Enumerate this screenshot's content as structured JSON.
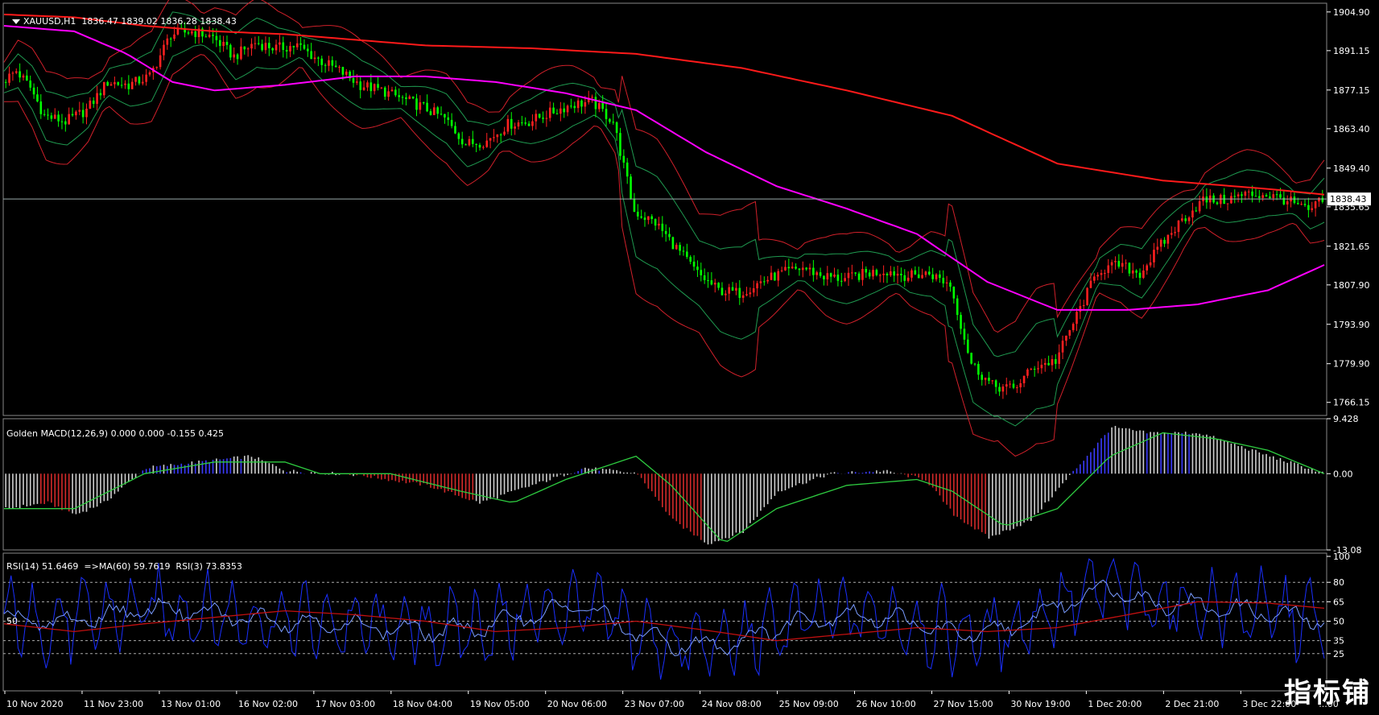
{
  "header": {
    "symbol": "XAUUSD,H1",
    "ohlc": "1836.47 1839.02 1836.28 1838.43"
  },
  "indicators": {
    "macd_label": "Golden MACD(12,26,9) 0.000 0.000 -0.155 0.425",
    "rsi_label": "RSI(14) 51.6469  =>MA(60) 59.7619  RSI(3) 73.8353",
    "rsi_mid_label": "50"
  },
  "current_price": "1838.43",
  "watermark": "指标铺",
  "colors": {
    "background": "#000000",
    "bull": "#ff2020",
    "bear": "#00ff00",
    "ma_slow": "#ff1a1a",
    "ma_mid": "#ff00ff",
    "bb_outer": "#d0202a",
    "bb_inner": "#1f9a50",
    "macd_signal": "#2ecc40",
    "rsi14": "#7a9cff",
    "rsi3": "#1a2fff",
    "rsi_ma": "#c01010",
    "axis": "#808080"
  },
  "chart_data": [
    {
      "type": "line",
      "title": "XAUUSD,H1",
      "ylim": [
        1761.5,
        1908.0
      ],
      "yticks": [
        1904.9,
        1891.15,
        1877.15,
        1863.4,
        1849.4,
        1835.65,
        1821.65,
        1807.9,
        1793.9,
        1779.9,
        1766.15
      ],
      "x_labels": [
        "10 Nov 2020",
        "11 Nov 23:00",
        "13 Nov 01:00",
        "16 Nov 02:00",
        "17 Nov 03:00",
        "18 Nov 04:00",
        "19 Nov 05:00",
        "20 Nov 06:00",
        "23 Nov 07:00",
        "24 Nov 08:00",
        "25 Nov 09:00",
        "26 Nov 10:00",
        "27 Nov 15:00",
        "30 Nov 19:00",
        "1 Dec 20:00",
        "2 Dec 21:00",
        "3 Dec 22:00"
      ],
      "x_truncated_label": "...00",
      "price_path": [
        [
          0,
          1880
        ],
        [
          4,
          1884
        ],
        [
          8,
          1878
        ],
        [
          12,
          1868
        ],
        [
          18,
          1866
        ],
        [
          24,
          1870
        ],
        [
          30,
          1880
        ],
        [
          36,
          1879
        ],
        [
          42,
          1882
        ],
        [
          48,
          1897
        ],
        [
          54,
          1898
        ],
        [
          60,
          1896
        ],
        [
          66,
          1889
        ],
        [
          72,
          1894
        ],
        [
          78,
          1892
        ],
        [
          84,
          1893
        ],
        [
          90,
          1888
        ],
        [
          96,
          1884
        ],
        [
          102,
          1879
        ],
        [
          108,
          1877
        ],
        [
          114,
          1874
        ],
        [
          120,
          1871
        ],
        [
          126,
          1867
        ],
        [
          132,
          1858
        ],
        [
          138,
          1859
        ],
        [
          144,
          1865
        ],
        [
          150,
          1866
        ],
        [
          156,
          1869
        ],
        [
          162,
          1872
        ],
        [
          168,
          1873
        ],
        [
          174,
          1866
        ],
        [
          180,
          1834
        ],
        [
          186,
          1830
        ],
        [
          192,
          1821
        ],
        [
          198,
          1812
        ],
        [
          204,
          1806
        ],
        [
          210,
          1805
        ],
        [
          216,
          1809
        ],
        [
          222,
          1812
        ],
        [
          228,
          1814
        ],
        [
          234,
          1811
        ],
        [
          240,
          1810
        ],
        [
          246,
          1812
        ],
        [
          252,
          1813
        ],
        [
          258,
          1811
        ],
        [
          264,
          1812
        ],
        [
          270,
          1808
        ],
        [
          276,
          1780
        ],
        [
          282,
          1772
        ],
        [
          288,
          1771
        ],
        [
          294,
          1779
        ],
        [
          300,
          1781
        ],
        [
          306,
          1797
        ],
        [
          312,
          1813
        ],
        [
          318,
          1815
        ],
        [
          324,
          1812
        ],
        [
          330,
          1822
        ],
        [
          336,
          1831
        ],
        [
          342,
          1838
        ],
        [
          348,
          1838
        ],
        [
          354,
          1840
        ],
        [
          360,
          1840
        ],
        [
          366,
          1838
        ],
        [
          372,
          1834
        ],
        [
          376,
          1838
        ]
      ],
      "ma_slow_path": [
        [
          0,
          1904
        ],
        [
          20,
          1903
        ],
        [
          40,
          1900
        ],
        [
          60,
          1898
        ],
        [
          80,
          1897
        ],
        [
          100,
          1895
        ],
        [
          120,
          1893
        ],
        [
          150,
          1892
        ],
        [
          180,
          1890
        ],
        [
          210,
          1885
        ],
        [
          240,
          1877
        ],
        [
          270,
          1868
        ],
        [
          300,
          1851
        ],
        [
          330,
          1845
        ],
        [
          360,
          1842
        ],
        [
          376,
          1840
        ]
      ],
      "ma_mid_path": [
        [
          0,
          1900
        ],
        [
          20,
          1898
        ],
        [
          35,
          1890
        ],
        [
          48,
          1880
        ],
        [
          60,
          1877
        ],
        [
          80,
          1879
        ],
        [
          100,
          1882
        ],
        [
          120,
          1882
        ],
        [
          140,
          1880
        ],
        [
          160,
          1876
        ],
        [
          180,
          1870
        ],
        [
          200,
          1855
        ],
        [
          220,
          1843
        ],
        [
          240,
          1835
        ],
        [
          260,
          1826
        ],
        [
          280,
          1809
        ],
        [
          300,
          1799
        ],
        [
          320,
          1799
        ],
        [
          340,
          1801
        ],
        [
          360,
          1806
        ],
        [
          376,
          1815
        ]
      ]
    },
    {
      "type": "bar",
      "title": "Golden MACD(12,26,9)",
      "ylim": [
        -13.08,
        9.428
      ],
      "yticks": [
        9.428,
        0.0,
        -13.08
      ],
      "histogram_path": [
        [
          0,
          -6
        ],
        [
          12,
          -5
        ],
        [
          20,
          -7
        ],
        [
          28,
          -5
        ],
        [
          40,
          1
        ],
        [
          55,
          2
        ],
        [
          70,
          3
        ],
        [
          80,
          0.5
        ],
        [
          100,
          -0.2
        ],
        [
          120,
          -2
        ],
        [
          135,
          -5
        ],
        [
          150,
          -2
        ],
        [
          165,
          1
        ],
        [
          180,
          0
        ],
        [
          190,
          -8
        ],
        [
          200,
          -12
        ],
        [
          210,
          -10
        ],
        [
          220,
          -3
        ],
        [
          235,
          0
        ],
        [
          250,
          0.5
        ],
        [
          262,
          -1
        ],
        [
          270,
          -7
        ],
        [
          280,
          -11
        ],
        [
          292,
          -8
        ],
        [
          305,
          1
        ],
        [
          315,
          8
        ],
        [
          325,
          7
        ],
        [
          340,
          7
        ],
        [
          360,
          3
        ],
        [
          376,
          0
        ]
      ],
      "signal_path": [
        [
          0,
          -6
        ],
        [
          20,
          -6
        ],
        [
          40,
          0
        ],
        [
          60,
          2
        ],
        [
          80,
          2
        ],
        [
          90,
          0
        ],
        [
          110,
          0
        ],
        [
          130,
          -3
        ],
        [
          145,
          -5
        ],
        [
          160,
          -1
        ],
        [
          180,
          3
        ],
        [
          190,
          -2
        ],
        [
          205,
          -12
        ],
        [
          220,
          -6
        ],
        [
          240,
          -2
        ],
        [
          260,
          -1
        ],
        [
          270,
          -3
        ],
        [
          285,
          -9
        ],
        [
          300,
          -6
        ],
        [
          315,
          3
        ],
        [
          330,
          7
        ],
        [
          345,
          6
        ],
        [
          360,
          4
        ],
        [
          376,
          0
        ]
      ]
    },
    {
      "type": "line",
      "title": "RSI(14) / MA(60) / RSI(3)",
      "ylim": [
        0,
        100
      ],
      "yticks": [
        100,
        80,
        65,
        50,
        35,
        25
      ],
      "guide_levels": [
        80,
        65,
        50,
        35,
        25
      ],
      "rsi14_path": [
        [
          0,
          52
        ],
        [
          15,
          48
        ],
        [
          30,
          55
        ],
        [
          45,
          60
        ],
        [
          60,
          55
        ],
        [
          75,
          52
        ],
        [
          90,
          48
        ],
        [
          105,
          46
        ],
        [
          120,
          42
        ],
        [
          135,
          45
        ],
        [
          150,
          55
        ],
        [
          165,
          62
        ],
        [
          180,
          40
        ],
        [
          195,
          30
        ],
        [
          210,
          35
        ],
        [
          225,
          50
        ],
        [
          240,
          55
        ],
        [
          255,
          52
        ],
        [
          270,
          40
        ],
        [
          285,
          42
        ],
        [
          300,
          62
        ],
        [
          315,
          78
        ],
        [
          325,
          65
        ],
        [
          340,
          62
        ],
        [
          355,
          58
        ],
        [
          376,
          50
        ]
      ],
      "rsi_ma_path": [
        [
          0,
          48
        ],
        [
          20,
          42
        ],
        [
          40,
          48
        ],
        [
          60,
          53
        ],
        [
          80,
          58
        ],
        [
          100,
          55
        ],
        [
          120,
          50
        ],
        [
          140,
          42
        ],
        [
          160,
          45
        ],
        [
          180,
          50
        ],
        [
          200,
          43
        ],
        [
          220,
          35
        ],
        [
          240,
          40
        ],
        [
          260,
          45
        ],
        [
          280,
          42
        ],
        [
          300,
          45
        ],
        [
          320,
          55
        ],
        [
          340,
          65
        ],
        [
          360,
          64
        ],
        [
          376,
          60
        ]
      ],
      "rsi3_range": [
        5,
        98
      ]
    }
  ]
}
